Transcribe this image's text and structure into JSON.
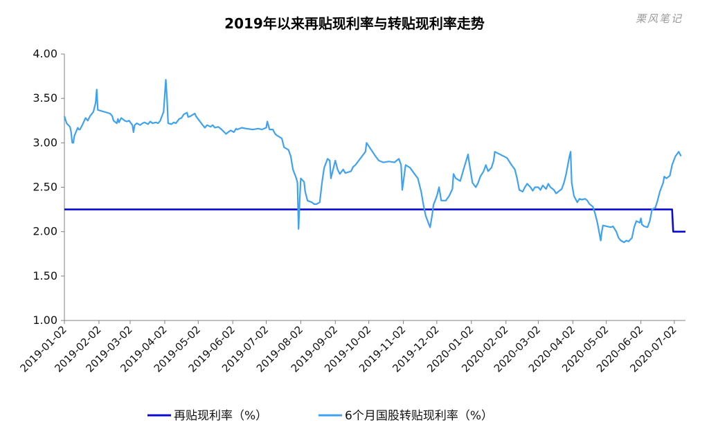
{
  "watermark": "栗风笔记",
  "chart_data": {
    "type": "line",
    "title": "2019年以来再贴现利率与转贴现利率走势",
    "xlabel": "",
    "ylabel": "",
    "ylim": [
      1.0,
      4.0
    ],
    "yticks": [
      "1.00",
      "1.50",
      "2.00",
      "2.50",
      "3.00",
      "3.50",
      "4.00"
    ],
    "xlim": [
      "2019-01-02",
      "2020-07-12"
    ],
    "xticks": [
      "2019-01-02",
      "2019-02-02",
      "2019-03-02",
      "2019-04-02",
      "2019-05-02",
      "2019-06-02",
      "2019-07-02",
      "2019-08-02",
      "2019-09-02",
      "2019-10-02",
      "2019-11-02",
      "2019-12-02",
      "2020-01-02",
      "2020-02-02",
      "2020-03-02",
      "2020-04-02",
      "2020-05-02",
      "2020-06-02",
      "2020-07-02"
    ],
    "grid": false,
    "legend_position": "bottom",
    "series": [
      {
        "name": "再贴现利率（%）",
        "color": "#0a0ad6",
        "points": [
          [
            "2019-01-02",
            2.25
          ],
          [
            "2020-06-30",
            2.25
          ],
          [
            "2020-07-01",
            2.0
          ],
          [
            "2020-07-12",
            2.0
          ]
        ]
      },
      {
        "name": "6个月国股转贴现利率（%）",
        "color": "#3fa2f0",
        "points": [
          [
            "2019-01-02",
            3.3
          ],
          [
            "2019-01-04",
            3.22
          ],
          [
            "2019-01-07",
            3.18
          ],
          [
            "2019-01-08",
            3.12
          ],
          [
            "2019-01-09",
            3.0
          ],
          [
            "2019-01-10",
            3.0
          ],
          [
            "2019-01-11",
            3.08
          ],
          [
            "2019-01-14",
            3.17
          ],
          [
            "2019-01-15",
            3.15
          ],
          [
            "2019-01-16",
            3.15
          ],
          [
            "2019-01-18",
            3.2
          ],
          [
            "2019-01-21",
            3.28
          ],
          [
            "2019-01-23",
            3.25
          ],
          [
            "2019-01-25",
            3.3
          ],
          [
            "2019-01-28",
            3.35
          ],
          [
            "2019-01-30",
            3.45
          ],
          [
            "2019-01-31",
            3.6
          ],
          [
            "2019-02-01",
            3.37
          ],
          [
            "2019-02-12",
            3.33
          ],
          [
            "2019-02-14",
            3.3
          ],
          [
            "2019-02-15",
            3.25
          ],
          [
            "2019-02-18",
            3.22
          ],
          [
            "2019-02-19",
            3.27
          ],
          [
            "2019-02-20",
            3.23
          ],
          [
            "2019-02-22",
            3.28
          ],
          [
            "2019-02-25",
            3.25
          ],
          [
            "2019-02-27",
            3.24
          ],
          [
            "2019-03-01",
            3.25
          ],
          [
            "2019-03-04",
            3.2
          ],
          [
            "2019-03-05",
            3.12
          ],
          [
            "2019-03-06",
            3.2
          ],
          [
            "2019-03-08",
            3.22
          ],
          [
            "2019-03-11",
            3.2
          ],
          [
            "2019-03-13",
            3.22
          ],
          [
            "2019-03-15",
            3.23
          ],
          [
            "2019-03-18",
            3.21
          ],
          [
            "2019-03-20",
            3.24
          ],
          [
            "2019-03-22",
            3.22
          ],
          [
            "2019-03-25",
            3.23
          ],
          [
            "2019-03-27",
            3.22
          ],
          [
            "2019-03-29",
            3.25
          ],
          [
            "2019-04-01",
            3.35
          ],
          [
            "2019-04-03",
            3.71
          ],
          [
            "2019-04-04",
            3.5
          ],
          [
            "2019-04-05",
            3.22
          ],
          [
            "2019-04-08",
            3.21
          ],
          [
            "2019-04-10",
            3.23
          ],
          [
            "2019-04-12",
            3.22
          ],
          [
            "2019-04-15",
            3.27
          ],
          [
            "2019-04-17",
            3.28
          ],
          [
            "2019-04-19",
            3.32
          ],
          [
            "2019-04-22",
            3.34
          ],
          [
            "2019-04-23",
            3.29
          ],
          [
            "2019-04-25",
            3.3
          ],
          [
            "2019-04-29",
            3.33
          ],
          [
            "2019-04-30",
            3.3
          ],
          [
            "2019-05-06",
            3.2
          ],
          [
            "2019-05-08",
            3.17
          ],
          [
            "2019-05-10",
            3.2
          ],
          [
            "2019-05-13",
            3.18
          ],
          [
            "2019-05-15",
            3.2
          ],
          [
            "2019-05-17",
            3.17
          ],
          [
            "2019-05-20",
            3.18
          ],
          [
            "2019-05-23",
            3.15
          ],
          [
            "2019-05-27",
            3.1
          ],
          [
            "2019-05-29",
            3.12
          ],
          [
            "2019-05-31",
            3.14
          ],
          [
            "2019-06-03",
            3.12
          ],
          [
            "2019-06-05",
            3.16
          ],
          [
            "2019-06-06",
            3.15
          ],
          [
            "2019-06-10",
            3.17
          ],
          [
            "2019-06-14",
            3.16
          ],
          [
            "2019-06-20",
            3.15
          ],
          [
            "2019-06-25",
            3.16
          ],
          [
            "2019-06-28",
            3.15
          ],
          [
            "2019-07-02",
            3.17
          ],
          [
            "2019-07-03",
            3.24
          ],
          [
            "2019-07-05",
            3.15
          ],
          [
            "2019-07-08",
            3.15
          ],
          [
            "2019-07-10",
            3.1
          ],
          [
            "2019-07-12",
            3.08
          ],
          [
            "2019-07-16",
            3.05
          ],
          [
            "2019-07-18",
            2.95
          ],
          [
            "2019-07-22",
            2.92
          ],
          [
            "2019-07-24",
            2.85
          ],
          [
            "2019-07-26",
            2.7
          ],
          [
            "2019-07-29",
            2.6
          ],
          [
            "2019-07-30",
            2.55
          ],
          [
            "2019-07-31",
            2.03
          ],
          [
            "2019-08-01",
            2.35
          ],
          [
            "2019-08-02",
            2.6
          ],
          [
            "2019-08-05",
            2.56
          ],
          [
            "2019-08-06",
            2.45
          ],
          [
            "2019-08-08",
            2.35
          ],
          [
            "2019-08-12",
            2.33
          ],
          [
            "2019-08-14",
            2.31
          ],
          [
            "2019-08-16",
            2.31
          ],
          [
            "2019-08-19",
            2.33
          ],
          [
            "2019-08-21",
            2.55
          ],
          [
            "2019-08-23",
            2.72
          ],
          [
            "2019-08-26",
            2.82
          ],
          [
            "2019-08-28",
            2.8
          ],
          [
            "2019-08-29",
            2.6
          ],
          [
            "2019-09-02",
            2.8
          ],
          [
            "2019-09-04",
            2.7
          ],
          [
            "2019-09-06",
            2.65
          ],
          [
            "2019-09-09",
            2.7
          ],
          [
            "2019-09-11",
            2.66
          ],
          [
            "2019-09-16",
            2.68
          ],
          [
            "2019-09-18",
            2.73
          ],
          [
            "2019-09-20",
            2.75
          ],
          [
            "2019-09-23",
            2.8
          ],
          [
            "2019-09-26",
            2.85
          ],
          [
            "2019-09-29",
            2.9
          ],
          [
            "2019-09-30",
            3.0
          ],
          [
            "2019-10-08",
            2.85
          ],
          [
            "2019-10-11",
            2.8
          ],
          [
            "2019-10-15",
            2.78
          ],
          [
            "2019-10-20",
            2.79
          ],
          [
            "2019-10-25",
            2.78
          ],
          [
            "2019-10-29",
            2.82
          ],
          [
            "2019-10-31",
            2.75
          ],
          [
            "2019-11-01",
            2.47
          ],
          [
            "2019-11-04",
            2.75
          ],
          [
            "2019-11-08",
            2.72
          ],
          [
            "2019-11-12",
            2.65
          ],
          [
            "2019-11-15",
            2.6
          ],
          [
            "2019-11-18",
            2.45
          ],
          [
            "2019-11-20",
            2.3
          ],
          [
            "2019-11-22",
            2.18
          ],
          [
            "2019-11-25",
            2.08
          ],
          [
            "2019-11-26",
            2.05
          ],
          [
            "2019-11-28",
            2.2
          ],
          [
            "2019-11-29",
            2.3
          ],
          [
            "2019-12-02",
            2.4
          ],
          [
            "2019-12-04",
            2.5
          ],
          [
            "2019-12-06",
            2.35
          ],
          [
            "2019-12-10",
            2.35
          ],
          [
            "2019-12-13",
            2.4
          ],
          [
            "2019-12-16",
            2.48
          ],
          [
            "2019-12-17",
            2.65
          ],
          [
            "2019-12-19",
            2.6
          ],
          [
            "2019-12-23",
            2.57
          ],
          [
            "2019-12-26",
            2.7
          ],
          [
            "2019-12-30",
            2.87
          ],
          [
            "2019-12-31",
            2.78
          ],
          [
            "2020-01-03",
            2.55
          ],
          [
            "2020-01-06",
            2.5
          ],
          [
            "2020-01-08",
            2.55
          ],
          [
            "2020-01-10",
            2.62
          ],
          [
            "2020-01-13",
            2.68
          ],
          [
            "2020-01-15",
            2.75
          ],
          [
            "2020-01-17",
            2.68
          ],
          [
            "2020-01-20",
            2.72
          ],
          [
            "2020-01-22",
            2.8
          ],
          [
            "2020-01-23",
            2.9
          ],
          [
            "2020-02-03",
            2.83
          ],
          [
            "2020-02-07",
            2.75
          ],
          [
            "2020-02-10",
            2.7
          ],
          [
            "2020-02-12",
            2.6
          ],
          [
            "2020-02-14",
            2.47
          ],
          [
            "2020-02-17",
            2.45
          ],
          [
            "2020-02-19",
            2.5
          ],
          [
            "2020-02-21",
            2.54
          ],
          [
            "2020-02-24",
            2.5
          ],
          [
            "2020-02-26",
            2.46
          ],
          [
            "2020-02-28",
            2.5
          ],
          [
            "2020-03-02",
            2.5
          ],
          [
            "2020-03-04",
            2.47
          ],
          [
            "2020-03-06",
            2.52
          ],
          [
            "2020-03-09",
            2.48
          ],
          [
            "2020-03-11",
            2.54
          ],
          [
            "2020-03-13",
            2.5
          ],
          [
            "2020-03-16",
            2.47
          ],
          [
            "2020-03-18",
            2.43
          ],
          [
            "2020-03-20",
            2.45
          ],
          [
            "2020-03-23",
            2.48
          ],
          [
            "2020-03-25",
            2.55
          ],
          [
            "2020-03-27",
            2.65
          ],
          [
            "2020-03-30",
            2.85
          ],
          [
            "2020-03-31",
            2.9
          ],
          [
            "2020-04-01",
            2.55
          ],
          [
            "2020-04-03",
            2.4
          ],
          [
            "2020-04-06",
            2.33
          ],
          [
            "2020-04-08",
            2.37
          ],
          [
            "2020-04-10",
            2.36
          ],
          [
            "2020-04-13",
            2.37
          ],
          [
            "2020-04-15",
            2.35
          ],
          [
            "2020-04-17",
            2.31
          ],
          [
            "2020-04-20",
            2.28
          ],
          [
            "2020-04-22",
            2.2
          ],
          [
            "2020-04-24",
            2.1
          ],
          [
            "2020-04-27",
            1.9
          ],
          [
            "2020-04-28",
            2.0
          ],
          [
            "2020-04-29",
            2.07
          ],
          [
            "2020-05-06",
            2.05
          ],
          [
            "2020-05-08",
            2.06
          ],
          [
            "2020-05-11",
            2.0
          ],
          [
            "2020-05-13",
            1.93
          ],
          [
            "2020-05-15",
            1.9
          ],
          [
            "2020-05-18",
            1.88
          ],
          [
            "2020-05-20",
            1.9
          ],
          [
            "2020-05-22",
            1.89
          ],
          [
            "2020-05-25",
            1.93
          ],
          [
            "2020-05-27",
            2.05
          ],
          [
            "2020-05-29",
            2.12
          ],
          [
            "2020-06-01",
            2.1
          ],
          [
            "2020-06-02",
            2.15
          ],
          [
            "2020-06-03",
            2.08
          ],
          [
            "2020-06-05",
            2.06
          ],
          [
            "2020-06-08",
            2.05
          ],
          [
            "2020-06-10",
            2.12
          ],
          [
            "2020-06-12",
            2.25
          ],
          [
            "2020-06-15",
            2.27
          ],
          [
            "2020-06-17",
            2.35
          ],
          [
            "2020-06-19",
            2.45
          ],
          [
            "2020-06-22",
            2.55
          ],
          [
            "2020-06-23",
            2.62
          ],
          [
            "2020-06-25",
            2.6
          ],
          [
            "2020-06-28",
            2.63
          ],
          [
            "2020-06-30",
            2.75
          ],
          [
            "2020-07-03",
            2.85
          ],
          [
            "2020-07-06",
            2.9
          ],
          [
            "2020-07-08",
            2.85
          ]
        ]
      }
    ]
  }
}
